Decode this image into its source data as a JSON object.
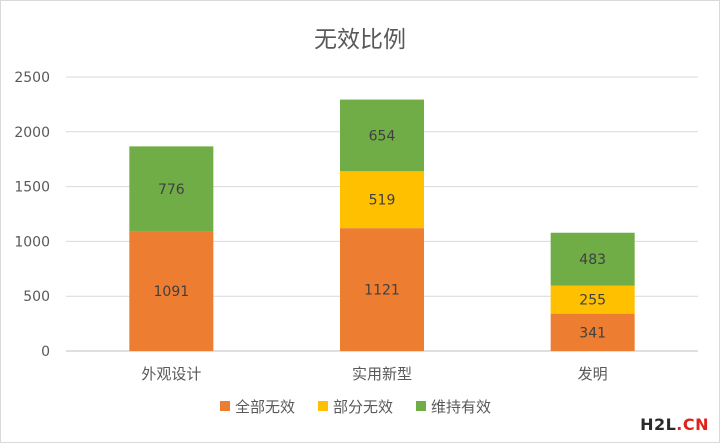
{
  "chart_data": {
    "type": "bar",
    "stacked": true,
    "title": "无效比例",
    "categories": [
      "外观设计",
      "实用新型",
      "发明"
    ],
    "series": [
      {
        "name": "全部无效",
        "color": "#ED7D31",
        "values": [
          1091,
          1121,
          341
        ]
      },
      {
        "name": "部分无效",
        "color": "#FFC000",
        "values": [
          0,
          519,
          255
        ]
      },
      {
        "name": "维持有效",
        "color": "#70AD47",
        "values": [
          776,
          654,
          483
        ]
      }
    ],
    "ylim": [
      0,
      2500
    ],
    "yticks": [
      "0",
      "500",
      "1000",
      "1500",
      "2000",
      "2500"
    ],
    "grid": true,
    "legend_position": "bottom"
  },
  "watermark": {
    "part1": "H2L",
    "part2": ".CN"
  }
}
